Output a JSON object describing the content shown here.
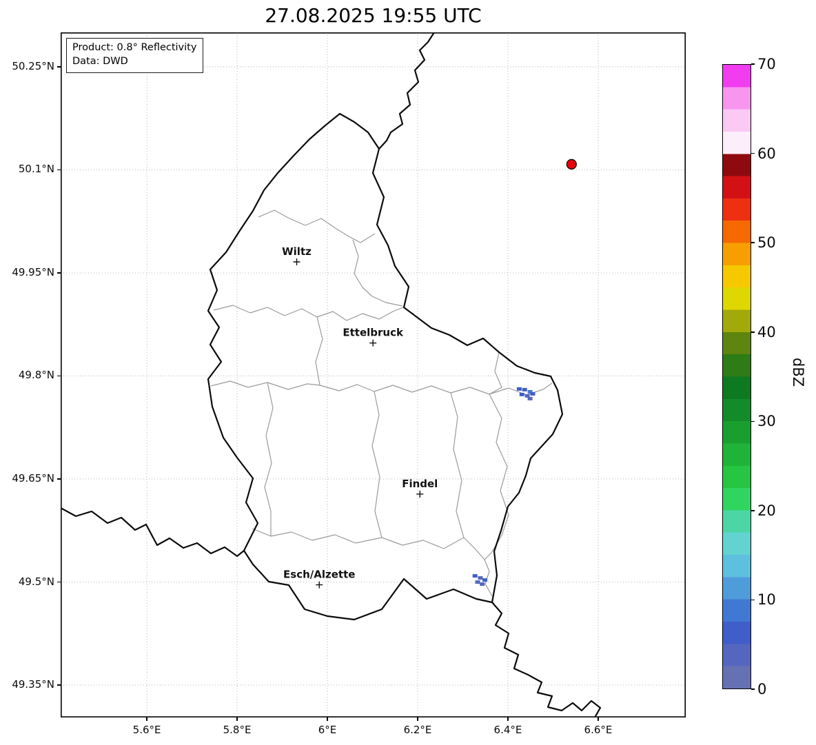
{
  "title": "27.08.2025 19:55 UTC",
  "info_box": {
    "product": "Product: 0.8° Reflectivity",
    "source": "Data: DWD"
  },
  "axes": {
    "x_ticks": [
      {
        "label": "5.6°E",
        "lon": 5.6
      },
      {
        "label": "5.8°E",
        "lon": 5.8
      },
      {
        "label": "6°E",
        "lon": 6.0
      },
      {
        "label": "6.2°E",
        "lon": 6.2
      },
      {
        "label": "6.4°E",
        "lon": 6.4
      },
      {
        "label": "6.6°E",
        "lon": 6.6
      }
    ],
    "y_ticks": [
      {
        "label": "50.25°N",
        "lat": 50.25
      },
      {
        "label": "50.1°N",
        "lat": 50.1
      },
      {
        "label": "49.95°N",
        "lat": 49.95
      },
      {
        "label": "49.8°N",
        "lat": 49.8
      },
      {
        "label": "49.65°N",
        "lat": 49.65
      },
      {
        "label": "49.5°N",
        "lat": 49.5
      },
      {
        "label": "49.35°N",
        "lat": 49.35
      }
    ],
    "extent": {
      "lon_min": 5.409,
      "lon_max": 6.794,
      "lat_min": 49.303,
      "lat_max": 50.3
    }
  },
  "map": {
    "cities": [
      {
        "name": "Wiltz",
        "lon": 5.932,
        "lat": 49.966
      },
      {
        "name": "Ettelbruck",
        "lon": 6.101,
        "lat": 49.848
      },
      {
        "name": "Findel",
        "lon": 6.205,
        "lat": 49.628
      },
      {
        "name": "Esch/Alzette",
        "lon": 5.982,
        "lat": 49.496
      }
    ],
    "radar_site_marker": {
      "lon": 6.541,
      "lat": 50.108,
      "color": "#e8000b"
    },
    "echo_cells": [
      {
        "lon": 6.425,
        "lat": 49.781,
        "dbz": 7
      },
      {
        "lon": 6.437,
        "lat": 49.78,
        "dbz": 5
      },
      {
        "lon": 6.449,
        "lat": 49.777,
        "dbz": 8
      },
      {
        "lon": 6.431,
        "lat": 49.773,
        "dbz": 6
      },
      {
        "lon": 6.443,
        "lat": 49.771,
        "dbz": 4
      },
      {
        "lon": 6.455,
        "lat": 49.774,
        "dbz": 6
      },
      {
        "lon": 6.449,
        "lat": 49.767,
        "dbz": 3
      },
      {
        "lon": 6.327,
        "lat": 49.509,
        "dbz": 5
      },
      {
        "lon": 6.339,
        "lat": 49.506,
        "dbz": 3
      },
      {
        "lon": 6.349,
        "lat": 49.503,
        "dbz": 6
      },
      {
        "lon": 6.333,
        "lat": 49.5,
        "dbz": 4
      },
      {
        "lon": 6.343,
        "lat": 49.497,
        "dbz": 3
      }
    ]
  },
  "colorbar": {
    "label": "dBZ",
    "min": 0,
    "max": 70,
    "tick_values": [
      0,
      10,
      20,
      30,
      40,
      50,
      60,
      70
    ],
    "tick_labels": [
      "0",
      "10",
      "20",
      "30",
      "40",
      "50",
      "60",
      "70"
    ],
    "colors_bottom_to_top": [
      "#6671b4",
      "#5566be",
      "#3f5ec9",
      "#4079d3",
      "#4f9cdb",
      "#5cc0de",
      "#62d3d0",
      "#4cd6a5",
      "#2fd55f",
      "#26c542",
      "#1fb437",
      "#189f2e",
      "#128b28",
      "#0d7a21",
      "#2d7c15",
      "#5d850f",
      "#a2a90a",
      "#dfd800",
      "#f6c800",
      "#f79f00",
      "#f56900",
      "#ef2f12",
      "#d31115",
      "#8f0a0e",
      "#fdeefb",
      "#fac9f4",
      "#f795ef",
      "#f23cf0"
    ]
  }
}
